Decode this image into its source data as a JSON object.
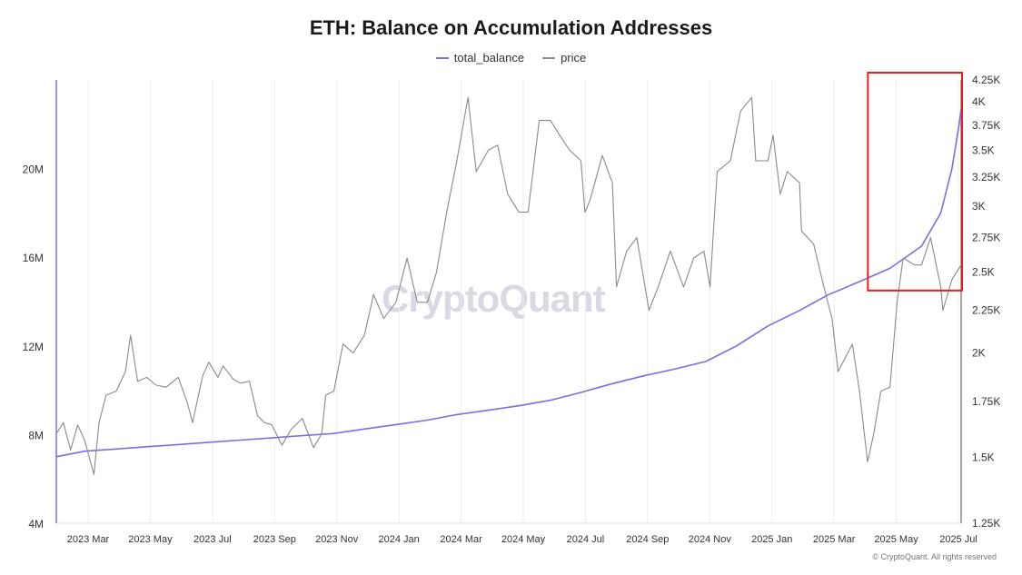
{
  "title": "ETH: Balance on Accumulation Addresses",
  "legend": {
    "balance_label": "total_balance",
    "price_label": "price"
  },
  "watermark": "CryptoQuant",
  "copyright": "© CryptoQuant. All rights reserved",
  "colors": {
    "balance": "#7b6fe0",
    "price": "#8a8a8a",
    "highlight": "#e02020",
    "grid": "#eeeeee",
    "axis_text": "#333333"
  },
  "chart_data": {
    "type": "line",
    "title": "ETH: Balance on Accumulation Addresses",
    "x_tick_labels": [
      "2023 Mar",
      "2023 May",
      "2023 Jul",
      "2023 Sep",
      "2023 Nov",
      "2024 Jan",
      "2024 Mar",
      "2024 May",
      "2024 Jul",
      "2024 Sep",
      "2024 Nov",
      "2025 Jan",
      "2025 Mar",
      "2025 May",
      "2025 Jul"
    ],
    "x_range": [
      "2023-02-01",
      "2025-07-10"
    ],
    "y_left": {
      "series": "total_balance",
      "range": [
        4000000,
        24000000
      ],
      "tick_labels": [
        "4M",
        "8M",
        "12M",
        "16M",
        "20M"
      ],
      "tick_values": [
        4000000,
        8000000,
        12000000,
        16000000,
        20000000
      ]
    },
    "y_right": {
      "series": "price",
      "scale": "log",
      "range": [
        1250,
        4250
      ],
      "tick_labels": [
        "1.25K",
        "1.5K",
        "1.75K",
        "2K",
        "2.25K",
        "2.5K",
        "2.75K",
        "3K",
        "3.25K",
        "3.5K",
        "3.75K",
        "4K",
        "4.25K"
      ],
      "tick_values": [
        1250,
        1500,
        1750,
        2000,
        2250,
        2500,
        2750,
        3000,
        3250,
        3500,
        3750,
        4000,
        4250
      ]
    },
    "grid": true,
    "legend_position": "top-center",
    "series": [
      {
        "name": "total_balance",
        "axis": "left",
        "points": [
          [
            "2023-02-01",
            7000000
          ],
          [
            "2023-03-01",
            7250000
          ],
          [
            "2023-04-01",
            7350000
          ],
          [
            "2023-05-01",
            7450000
          ],
          [
            "2023-06-01",
            7550000
          ],
          [
            "2023-07-01",
            7650000
          ],
          [
            "2023-08-01",
            7750000
          ],
          [
            "2023-09-01",
            7850000
          ],
          [
            "2023-10-01",
            7950000
          ],
          [
            "2023-11-01",
            8050000
          ],
          [
            "2023-12-01",
            8250000
          ],
          [
            "2024-01-01",
            8450000
          ],
          [
            "2024-02-01",
            8650000
          ],
          [
            "2024-03-01",
            8900000
          ],
          [
            "2024-04-01",
            9100000
          ],
          [
            "2024-05-01",
            9300000
          ],
          [
            "2024-06-01",
            9550000
          ],
          [
            "2024-07-01",
            9900000
          ],
          [
            "2024-08-01",
            10300000
          ],
          [
            "2024-09-01",
            10650000
          ],
          [
            "2024-10-01",
            10950000
          ],
          [
            "2024-11-01",
            11300000
          ],
          [
            "2024-12-01",
            12000000
          ],
          [
            "2025-01-01",
            12900000
          ],
          [
            "2025-02-01",
            13600000
          ],
          [
            "2025-03-01",
            14300000
          ],
          [
            "2025-04-01",
            14900000
          ],
          [
            "2025-05-01",
            15500000
          ],
          [
            "2025-06-01",
            16500000
          ],
          [
            "2025-06-20",
            18000000
          ],
          [
            "2025-07-01",
            20000000
          ],
          [
            "2025-07-08",
            22000000
          ],
          [
            "2025-07-10",
            22700000
          ]
        ]
      },
      {
        "name": "price",
        "axis": "right",
        "points": [
          [
            "2023-02-01",
            1600
          ],
          [
            "2023-02-08",
            1650
          ],
          [
            "2023-02-15",
            1530
          ],
          [
            "2023-02-22",
            1640
          ],
          [
            "2023-03-01",
            1570
          ],
          [
            "2023-03-10",
            1430
          ],
          [
            "2023-03-15",
            1650
          ],
          [
            "2023-03-22",
            1780
          ],
          [
            "2023-04-01",
            1800
          ],
          [
            "2023-04-10",
            1900
          ],
          [
            "2023-04-15",
            2100
          ],
          [
            "2023-04-22",
            1850
          ],
          [
            "2023-05-01",
            1870
          ],
          [
            "2023-05-10",
            1830
          ],
          [
            "2023-05-20",
            1820
          ],
          [
            "2023-06-01",
            1870
          ],
          [
            "2023-06-10",
            1740
          ],
          [
            "2023-06-15",
            1650
          ],
          [
            "2023-06-25",
            1880
          ],
          [
            "2023-07-01",
            1950
          ],
          [
            "2023-07-10",
            1870
          ],
          [
            "2023-07-15",
            1930
          ],
          [
            "2023-07-25",
            1860
          ],
          [
            "2023-08-01",
            1840
          ],
          [
            "2023-08-10",
            1850
          ],
          [
            "2023-08-18",
            1680
          ],
          [
            "2023-08-25",
            1650
          ],
          [
            "2023-09-01",
            1640
          ],
          [
            "2023-09-11",
            1550
          ],
          [
            "2023-09-20",
            1620
          ],
          [
            "2023-10-01",
            1670
          ],
          [
            "2023-10-12",
            1540
          ],
          [
            "2023-10-20",
            1600
          ],
          [
            "2023-10-24",
            1780
          ],
          [
            "2023-11-01",
            1800
          ],
          [
            "2023-11-10",
            2050
          ],
          [
            "2023-11-20",
            2000
          ],
          [
            "2023-12-01",
            2100
          ],
          [
            "2023-12-10",
            2350
          ],
          [
            "2023-12-20",
            2200
          ],
          [
            "2024-01-01",
            2300
          ],
          [
            "2024-01-12",
            2600
          ],
          [
            "2024-01-22",
            2300
          ],
          [
            "2024-02-01",
            2300
          ],
          [
            "2024-02-10",
            2500
          ],
          [
            "2024-02-20",
            2950
          ],
          [
            "2024-03-01",
            3400
          ],
          [
            "2024-03-12",
            4050
          ],
          [
            "2024-03-20",
            3300
          ],
          [
            "2024-04-01",
            3500
          ],
          [
            "2024-04-10",
            3550
          ],
          [
            "2024-04-20",
            3100
          ],
          [
            "2024-05-01",
            2950
          ],
          [
            "2024-05-10",
            2950
          ],
          [
            "2024-05-21",
            3800
          ],
          [
            "2024-06-01",
            3800
          ],
          [
            "2024-06-10",
            3650
          ],
          [
            "2024-06-20",
            3500
          ],
          [
            "2024-07-01",
            3400
          ],
          [
            "2024-07-05",
            2950
          ],
          [
            "2024-07-10",
            3050
          ],
          [
            "2024-07-22",
            3450
          ],
          [
            "2024-08-01",
            3200
          ],
          [
            "2024-08-05",
            2400
          ],
          [
            "2024-08-15",
            2650
          ],
          [
            "2024-08-25",
            2750
          ],
          [
            "2024-09-06",
            2250
          ],
          [
            "2024-09-15",
            2400
          ],
          [
            "2024-09-27",
            2650
          ],
          [
            "2024-10-10",
            2400
          ],
          [
            "2024-10-20",
            2600
          ],
          [
            "2024-10-30",
            2650
          ],
          [
            "2024-11-05",
            2400
          ],
          [
            "2024-11-12",
            3300
          ],
          [
            "2024-11-25",
            3400
          ],
          [
            "2024-12-05",
            3900
          ],
          [
            "2024-12-16",
            4050
          ],
          [
            "2024-12-20",
            3400
          ],
          [
            "2025-01-01",
            3400
          ],
          [
            "2025-01-06",
            3650
          ],
          [
            "2025-01-13",
            3100
          ],
          [
            "2025-01-20",
            3300
          ],
          [
            "2025-02-01",
            3200
          ],
          [
            "2025-02-03",
            2800
          ],
          [
            "2025-02-15",
            2700
          ],
          [
            "2025-02-25",
            2400
          ],
          [
            "2025-03-05",
            2200
          ],
          [
            "2025-03-11",
            1900
          ],
          [
            "2025-03-25",
            2050
          ],
          [
            "2025-04-01",
            1800
          ],
          [
            "2025-04-09",
            1480
          ],
          [
            "2025-04-15",
            1600
          ],
          [
            "2025-04-22",
            1800
          ],
          [
            "2025-05-01",
            1820
          ],
          [
            "2025-05-08",
            2300
          ],
          [
            "2025-05-14",
            2600
          ],
          [
            "2025-05-25",
            2550
          ],
          [
            "2025-06-01",
            2550
          ],
          [
            "2025-06-10",
            2750
          ],
          [
            "2025-06-20",
            2400
          ],
          [
            "2025-06-22",
            2250
          ],
          [
            "2025-07-01",
            2450
          ],
          [
            "2025-07-10",
            2550
          ]
        ]
      }
    ],
    "annotations": [
      {
        "type": "box",
        "color": "red",
        "x_range": [
          "2025-04-20",
          "2025-07-10"
        ],
        "y_range_left": [
          14500000,
          24000000
        ]
      }
    ]
  }
}
